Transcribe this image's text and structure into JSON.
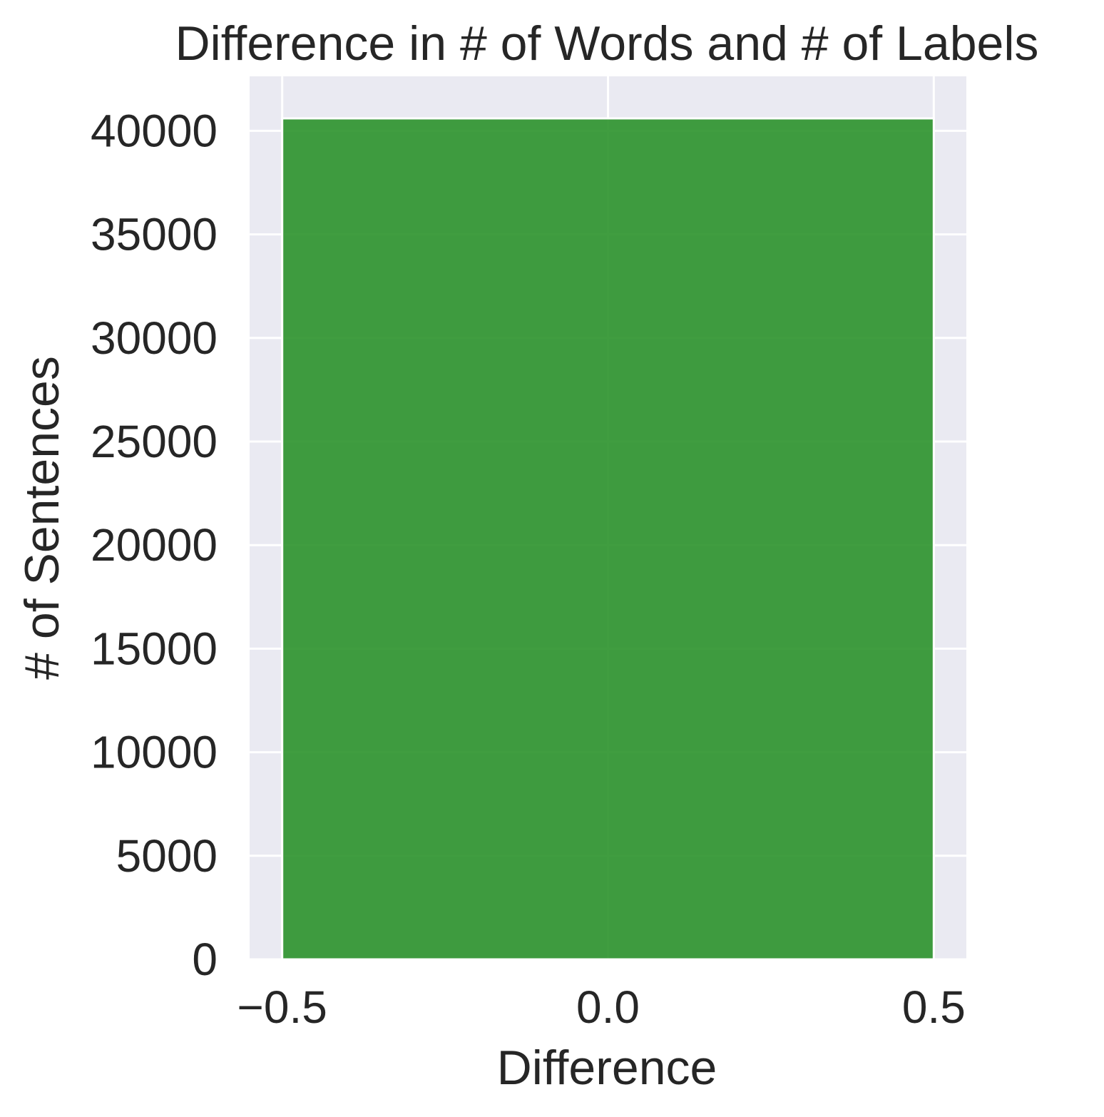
{
  "chart_data": {
    "type": "bar",
    "title": "Difference in # of Words and # of Labels",
    "xlabel": "Difference",
    "ylabel": "# of Sentences",
    "bins": [
      {
        "x_start": -0.5,
        "x_end": 0.5,
        "value": 40600
      }
    ],
    "xlim": [
      -0.55,
      0.55
    ],
    "ylim": [
      0,
      42630
    ],
    "x_ticks": [
      -0.5,
      0.0,
      0.5
    ],
    "x_tick_labels": [
      "−0.5",
      "0.0",
      "0.5"
    ],
    "y_ticks": [
      0,
      5000,
      10000,
      15000,
      20000,
      25000,
      30000,
      35000,
      40000
    ],
    "y_tick_labels": [
      "0",
      "5000",
      "10000",
      "15000",
      "20000",
      "25000",
      "30000",
      "35000",
      "40000"
    ],
    "grid": true,
    "colors": {
      "bar": "#2b922b",
      "plot_background": "#eaeaf2",
      "grid": "#ffffff"
    }
  }
}
